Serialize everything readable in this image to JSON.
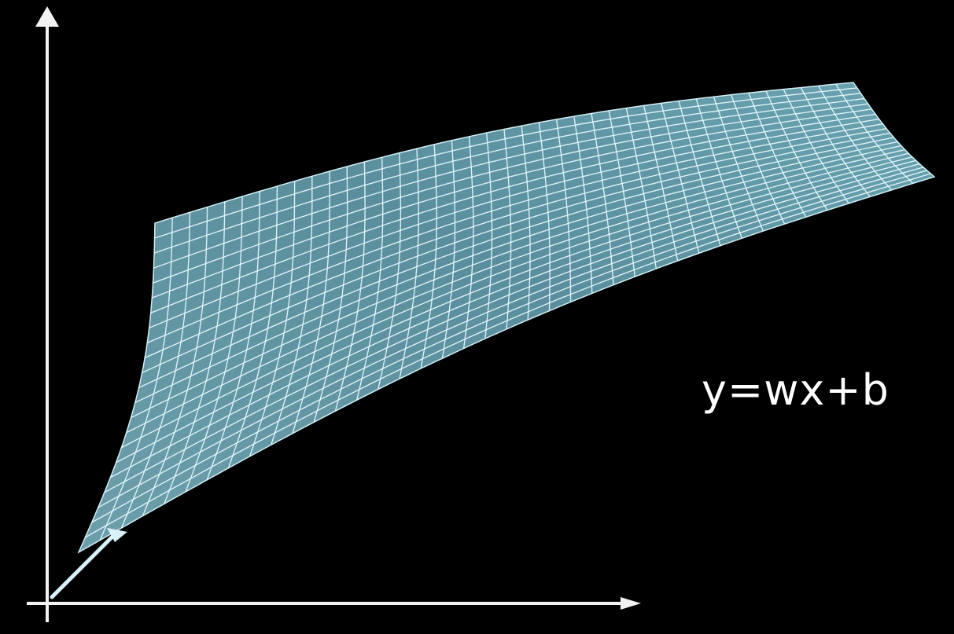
{
  "equation": "y=wx+b",
  "colors": {
    "background": "#000000",
    "surface_fill": "#5f94a1",
    "surface_light": "#79b2be",
    "grid_line": "#e9fbff",
    "axis": "#f2f2f2",
    "vector": "#d9f2fa",
    "equation_text": "#ffffff"
  },
  "surface": {
    "grid_columns": 40,
    "grid_rows": 22
  }
}
